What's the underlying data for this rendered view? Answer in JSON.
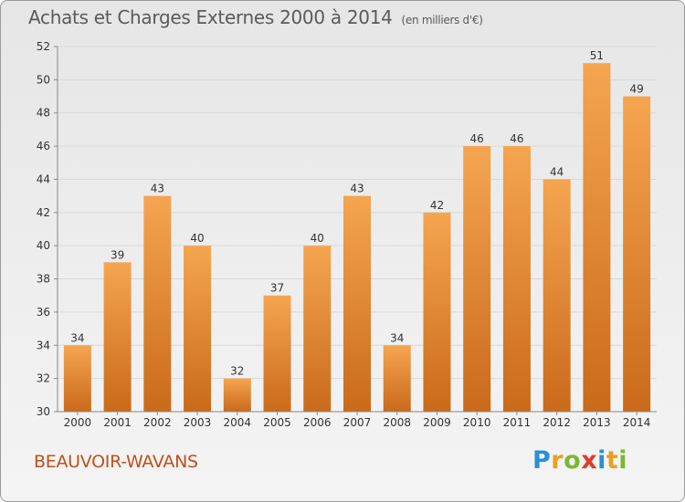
{
  "header": {
    "title": "Achats et Charges Externes 2000 à 2014",
    "unit": "(en milliers d'€)"
  },
  "footer": {
    "commune": "BEAUVOIR-WAVANS",
    "logo_letters": [
      {
        "char": "P",
        "color": "#2a8fd6"
      },
      {
        "char": "r",
        "color": "#e8a020"
      },
      {
        "char": "o",
        "color": "#7cb82f"
      },
      {
        "char": "x",
        "color": "#e23a2a"
      },
      {
        "char": "i",
        "color": "#2a8fd6"
      },
      {
        "char": "t",
        "color": "#e8a020"
      },
      {
        "char": "i",
        "color": "#7cb82f"
      }
    ]
  },
  "colors": {
    "bar_top": "#f5a550",
    "bar_bottom": "#c96a1a",
    "grid": "#d9d9d9",
    "axis": "#888888"
  },
  "chart_data": {
    "type": "bar",
    "title": "Achats et Charges Externes 2000 à 2014",
    "subtitle": "(en milliers d'€)",
    "categories": [
      "2000",
      "2001",
      "2002",
      "2003",
      "2004",
      "2005",
      "2006",
      "2007",
      "2008",
      "2009",
      "2010",
      "2011",
      "2012",
      "2013",
      "2014"
    ],
    "values": [
      34,
      39,
      43,
      40,
      32,
      37,
      40,
      43,
      34,
      42,
      46,
      46,
      44,
      51,
      49
    ],
    "ylim": [
      30,
      52
    ],
    "yticks": [
      30,
      32,
      34,
      36,
      38,
      40,
      42,
      44,
      46,
      48,
      50,
      52
    ],
    "grid": true,
    "xlabel": "",
    "ylabel": ""
  }
}
